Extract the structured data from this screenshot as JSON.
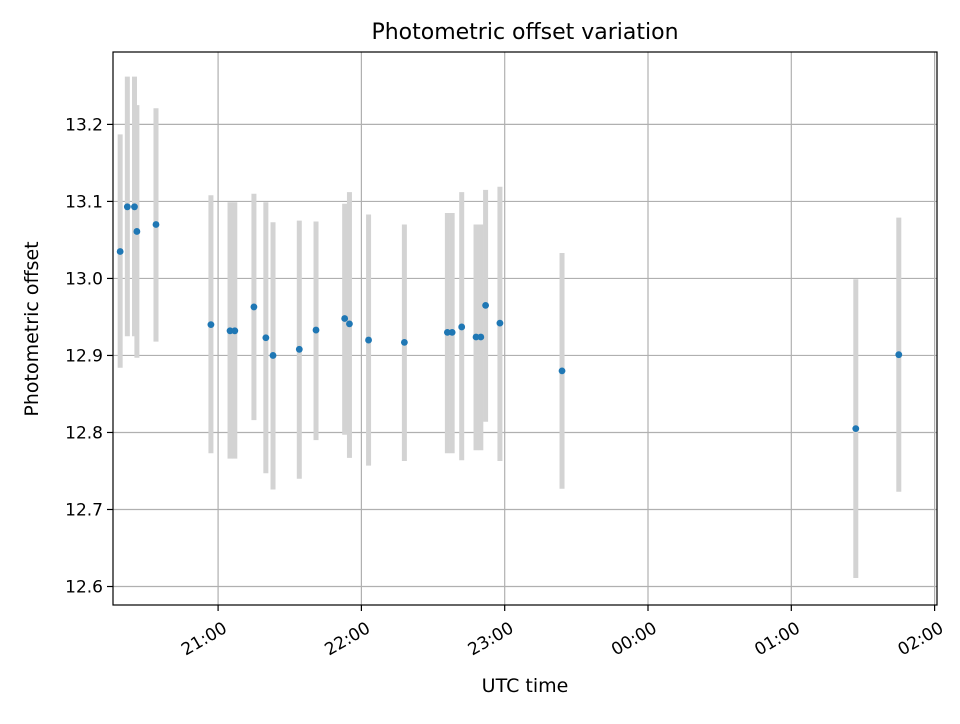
{
  "chart_data": {
    "type": "scatter",
    "title": "Photometric offset variation",
    "xlabel": "UTC time",
    "ylabel": "Photometric offset",
    "x_axis_kind": "time",
    "xlim": [
      "20:16",
      "02:01"
    ],
    "ylim": [
      12.576,
      13.294
    ],
    "grid": true,
    "x_ticks": [
      "21:00",
      "22:00",
      "23:00",
      "00:00",
      "01:00",
      "02:00"
    ],
    "y_ticks": [
      "12.6",
      "12.7",
      "12.8",
      "12.9",
      "13.0",
      "13.1",
      "13.2"
    ],
    "marker_color": "#1f77b4",
    "errorbar_color": "#d3d3d3",
    "points": [
      {
        "time": "20:19",
        "value": 13.035,
        "err_low": 12.884,
        "err_high": 13.187
      },
      {
        "time": "20:22",
        "value": 13.093,
        "err_low": 12.925,
        "err_high": 13.262
      },
      {
        "time": "20:25",
        "value": 13.093,
        "err_low": 12.925,
        "err_high": 13.262
      },
      {
        "time": "20:26",
        "value": 13.061,
        "err_low": 12.897,
        "err_high": 13.225
      },
      {
        "time": "20:34",
        "value": 13.07,
        "err_low": 12.918,
        "err_high": 13.221
      },
      {
        "time": "20:57",
        "value": 12.94,
        "err_low": 12.773,
        "err_high": 13.108
      },
      {
        "time": "21:05",
        "value": 12.932,
        "err_low": 12.766,
        "err_high": 13.099
      },
      {
        "time": "21:07",
        "value": 12.932,
        "err_low": 12.766,
        "err_high": 13.099
      },
      {
        "time": "21:15",
        "value": 12.963,
        "err_low": 12.816,
        "err_high": 13.11
      },
      {
        "time": "21:20",
        "value": 12.923,
        "err_low": 12.747,
        "err_high": 13.099
      },
      {
        "time": "21:23",
        "value": 12.9,
        "err_low": 12.726,
        "err_high": 13.073
      },
      {
        "time": "21:34",
        "value": 12.908,
        "err_low": 12.74,
        "err_high": 13.075
      },
      {
        "time": "21:41",
        "value": 12.933,
        "err_low": 12.79,
        "err_high": 13.074
      },
      {
        "time": "21:53",
        "value": 12.948,
        "err_low": 12.797,
        "err_high": 13.097
      },
      {
        "time": "21:55",
        "value": 12.941,
        "err_low": 12.767,
        "err_high": 13.112
      },
      {
        "time": "22:03",
        "value": 12.92,
        "err_low": 12.757,
        "err_high": 13.083
      },
      {
        "time": "22:18",
        "value": 12.917,
        "err_low": 12.763,
        "err_high": 13.07
      },
      {
        "time": "22:36",
        "value": 12.93,
        "err_low": 12.773,
        "err_high": 13.085
      },
      {
        "time": "22:38",
        "value": 12.93,
        "err_low": 12.773,
        "err_high": 13.085
      },
      {
        "time": "22:42",
        "value": 12.937,
        "err_low": 12.764,
        "err_high": 13.112
      },
      {
        "time": "22:48",
        "value": 12.924,
        "err_low": 12.777,
        "err_high": 13.07
      },
      {
        "time": "22:50",
        "value": 12.924,
        "err_low": 12.777,
        "err_high": 13.07
      },
      {
        "time": "22:52",
        "value": 12.965,
        "err_low": 12.814,
        "err_high": 13.115
      },
      {
        "time": "22:58",
        "value": 12.942,
        "err_low": 12.763,
        "err_high": 13.119
      },
      {
        "time": "23:24",
        "value": 12.88,
        "err_low": 12.727,
        "err_high": 13.033
      },
      {
        "time": "01:27",
        "value": 12.805,
        "err_low": 12.611,
        "err_high": 12.999
      },
      {
        "time": "01:45",
        "value": 12.901,
        "err_low": 12.723,
        "err_high": 13.079
      }
    ]
  }
}
